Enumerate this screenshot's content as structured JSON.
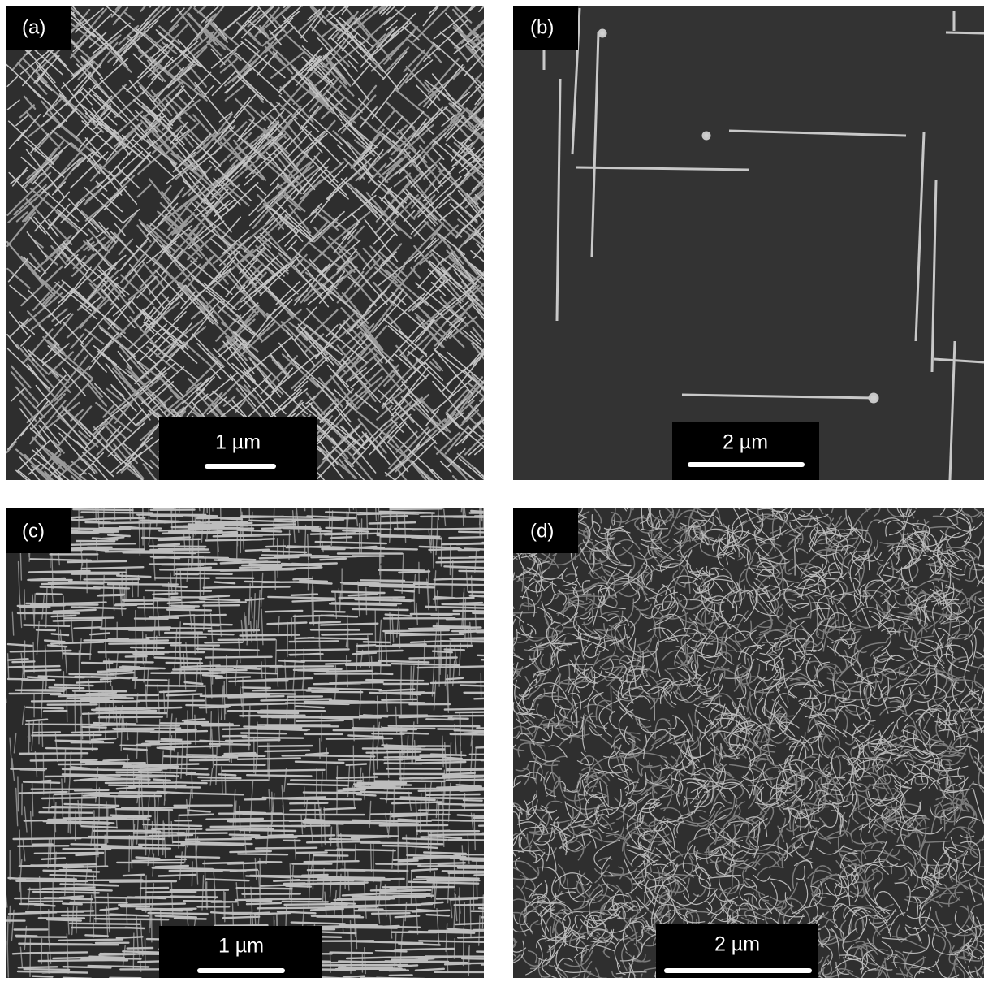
{
  "panels": [
    {
      "label": "(a)",
      "scale": "1 µm"
    },
    {
      "label": "(b)",
      "scale": "2 µm"
    },
    {
      "label": "(c)",
      "scale": "1 µm"
    },
    {
      "label": "(d)",
      "scale": "2 µm"
    }
  ]
}
